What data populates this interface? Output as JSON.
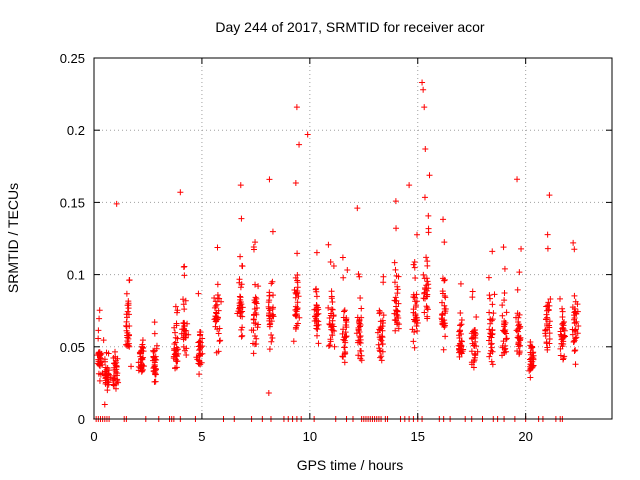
{
  "chart_data": {
    "type": "scatter",
    "title": "Day 244 of 2017, SRMTID for receiver acor",
    "xlabel": "GPS time / hours",
    "ylabel": "SRMTID / TECUs",
    "xlim": [
      0,
      24
    ],
    "ylim": [
      0,
      0.25
    ],
    "xticks": [
      0,
      5,
      10,
      15,
      20
    ],
    "xtick_labels": [
      "0",
      "5",
      "10",
      "15",
      "20"
    ],
    "yticks": [
      0,
      0.05,
      0.1,
      0.15,
      0.2,
      0.25
    ],
    "ytick_labels": [
      "0",
      "0.05",
      "0.1",
      "0.15",
      "0.2",
      "0.25"
    ],
    "grid": true,
    "marker": "+",
    "color": "#ff0000",
    "clusters": [
      {
        "x": 0.25,
        "y": 0.04
      },
      {
        "x": 0.6,
        "y": 0.028
      },
      {
        "x": 1.0,
        "y": 0.033
      },
      {
        "x": 1.6,
        "y": 0.06
      },
      {
        "x": 2.2,
        "y": 0.04
      },
      {
        "x": 2.8,
        "y": 0.038
      },
      {
        "x": 3.8,
        "y": 0.045
      },
      {
        "x": 4.2,
        "y": 0.06
      },
      {
        "x": 4.9,
        "y": 0.05
      },
      {
        "x": 5.7,
        "y": 0.07
      },
      {
        "x": 6.8,
        "y": 0.08
      },
      {
        "x": 7.5,
        "y": 0.07
      },
      {
        "x": 8.2,
        "y": 0.075
      },
      {
        "x": 9.4,
        "y": 0.08
      },
      {
        "x": 10.3,
        "y": 0.07
      },
      {
        "x": 11.0,
        "y": 0.065
      },
      {
        "x": 11.6,
        "y": 0.06
      },
      {
        "x": 12.3,
        "y": 0.06
      },
      {
        "x": 13.3,
        "y": 0.06
      },
      {
        "x": 14.0,
        "y": 0.08
      },
      {
        "x": 14.9,
        "y": 0.07
      },
      {
        "x": 15.4,
        "y": 0.09
      },
      {
        "x": 16.2,
        "y": 0.075
      },
      {
        "x": 17.0,
        "y": 0.055
      },
      {
        "x": 17.6,
        "y": 0.05
      },
      {
        "x": 18.4,
        "y": 0.06
      },
      {
        "x": 19.0,
        "y": 0.06
      },
      {
        "x": 19.7,
        "y": 0.06
      },
      {
        "x": 20.3,
        "y": 0.04
      },
      {
        "x": 21.0,
        "y": 0.07
      },
      {
        "x": 21.7,
        "y": 0.06
      },
      {
        "x": 22.3,
        "y": 0.065
      }
    ],
    "peaks": [
      {
        "x": 1.05,
        "y": 0.149
      },
      {
        "x": 4.0,
        "y": 0.157
      },
      {
        "x": 6.8,
        "y": 0.162
      },
      {
        "x": 9.4,
        "y": 0.216
      },
      {
        "x": 9.9,
        "y": 0.197
      },
      {
        "x": 9.5,
        "y": 0.19
      },
      {
        "x": 15.2,
        "y": 0.233
      },
      {
        "x": 15.25,
        "y": 0.228
      },
      {
        "x": 15.3,
        "y": 0.216
      },
      {
        "x": 15.35,
        "y": 0.187
      },
      {
        "x": 14.6,
        "y": 0.162
      },
      {
        "x": 19.6,
        "y": 0.166
      },
      {
        "x": 21.1,
        "y": 0.155
      },
      {
        "x": 12.2,
        "y": 0.146
      },
      {
        "x": 22.2,
        "y": 0.122
      },
      {
        "x": 8.1,
        "y": 0.018
      },
      {
        "x": 0.5,
        "y": 0.01
      }
    ],
    "baseline_x": [
      0.1,
      0.2,
      0.3,
      0.4,
      0.5,
      0.6,
      0.7,
      1.4,
      1.5,
      2.4,
      3.0,
      3.5,
      3.6,
      3.7,
      4.0,
      4.7,
      6.0,
      6.5,
      7.3,
      7.8,
      8.2,
      8.8,
      9.0,
      9.2,
      9.4,
      9.6,
      10.2,
      11.2,
      11.7,
      12.0,
      12.4,
      12.5,
      12.6,
      12.7,
      12.8,
      12.9,
      13.0,
      13.1,
      13.2,
      13.3,
      13.5,
      13.6,
      14.2,
      14.4,
      14.6,
      14.8,
      15.0,
      15.2,
      16.0,
      16.2,
      16.5,
      17.2,
      17.5,
      18.0,
      18.5,
      18.7,
      19.0,
      19.5,
      20.0,
      20.6,
      20.8,
      21.4,
      21.6,
      21.7
    ]
  }
}
